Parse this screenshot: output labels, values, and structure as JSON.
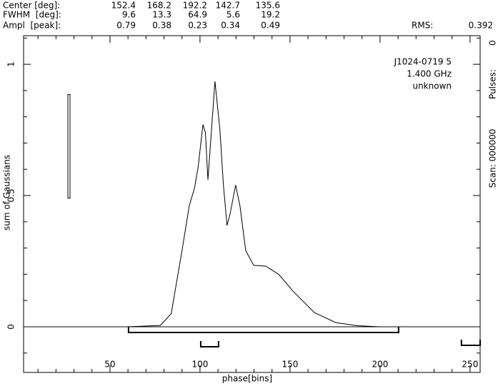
{
  "header": {
    "rows": [
      {
        "label": "Center [deg]:",
        "values": [
          152.4,
          168.2,
          192.2,
          142.7,
          135.6
        ]
      },
      {
        "label": "FWHM  [deg]:",
        "values": [
          9.6,
          13.3,
          64.9,
          5.6,
          19.2
        ]
      },
      {
        "label": "Ampl  [peak]:",
        "values": [
          0.79,
          0.38,
          0.23,
          0.34,
          0.49
        ]
      }
    ],
    "rms_label": "RMS:",
    "rms": 0.392
  },
  "chart_data": {
    "type": "line",
    "xlabel": "phase[bins]",
    "ylabel": "sum of Gaussians",
    "annotations": [
      "J1024-0719 5",
      "1.400 GHz",
      "unknown"
    ],
    "right_labels": [
      "Scan: 000000",
      "Pulses:",
      "0"
    ],
    "x": [
      2,
      60,
      78,
      84,
      90,
      94,
      97,
      99,
      101.6,
      103,
      104.4,
      108.3,
      111,
      113,
      115,
      116.7,
      119.8,
      122.2,
      125.4,
      129.8,
      136.5,
      143.7,
      151.6,
      163.5,
      175.4,
      187.3,
      200,
      255.5
    ],
    "values": [
      0,
      0,
      0.005,
      0.05,
      0.29,
      0.46,
      0.53,
      0.61,
      0.77,
      0.74,
      0.56,
      0.935,
      0.755,
      0.54,
      0.386,
      0.43,
      0.54,
      0.46,
      0.29,
      0.234,
      0.231,
      0.2,
      0.136,
      0.054,
      0.016,
      0.004,
      0,
      0
    ],
    "color": "#000000",
    "errorbar": {
      "x": 27.2,
      "low": 0.49,
      "high": 0.885
    },
    "windows": [
      [
        60.3,
        210.3
      ],
      [
        100.4,
        110.3
      ],
      [
        245.2,
        255.6
      ]
    ],
    "xlim": [
      2,
      255.6
    ],
    "ylim": [
      -0.174,
      1.109
    ],
    "xticks": [
      50,
      100,
      150,
      200,
      250
    ],
    "yticks": [
      0,
      0.5,
      1
    ],
    "xminorticks": [
      10,
      20,
      30,
      40,
      60,
      70,
      80,
      90,
      110,
      120,
      130,
      140,
      160,
      170,
      180,
      190,
      210,
      220,
      230,
      240
    ],
    "yminorticks": [
      -0.1,
      0.1,
      0.2,
      0.3,
      0.4,
      0.6,
      0.7,
      0.8,
      0.9,
      1.1
    ]
  }
}
